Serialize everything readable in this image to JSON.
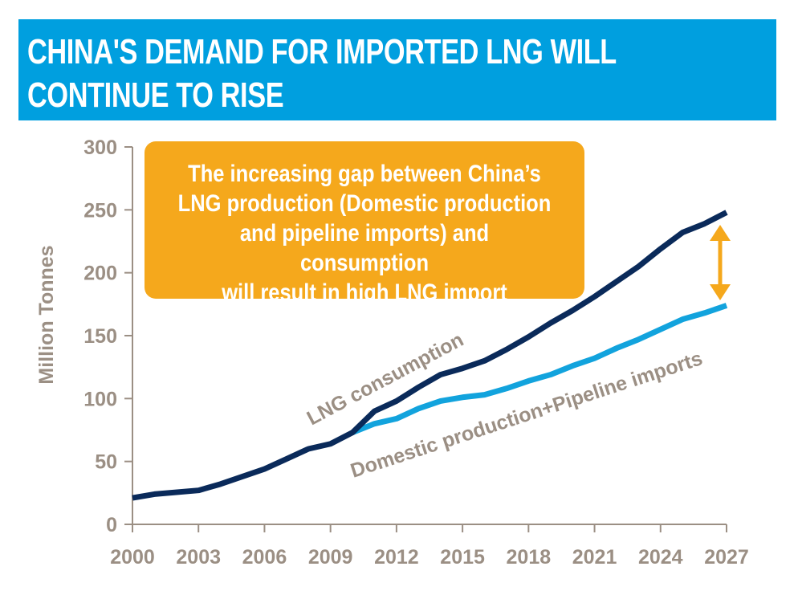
{
  "title": "CHINA'S DEMAND FOR IMPORTED LNG WILL CONTINUE TO RISE",
  "callout": {
    "lines": [
      "The increasing gap between China’s",
      "LNG production (Domestic production",
      "and pipeline imports) and consumption",
      "will result in high LNG import volumes"
    ]
  },
  "colors": {
    "banner": "#009fdf",
    "consumption": "#0a2a5a",
    "domestic": "#12a3dd",
    "callout": "#f5a81c",
    "axis_text": "#9b8f84"
  },
  "chart_data": {
    "type": "line",
    "title": "CHINA'S DEMAND FOR IMPORTED LNG WILL CONTINUE TO RISE",
    "xlabel": "",
    "ylabel": "Million Tonnes",
    "xlim": [
      2000,
      2027
    ],
    "ylim": [
      0,
      300
    ],
    "xticks": [
      "2000",
      "2003",
      "2006",
      "2009",
      "2012",
      "2015",
      "2018",
      "2021",
      "2024",
      "2027"
    ],
    "yticks": [
      "0",
      "50",
      "100",
      "150",
      "200",
      "250",
      "300"
    ],
    "series": [
      {
        "name": "LNG consumption",
        "x": [
          2000,
          2001,
          2003,
          2004,
          2005,
          2006,
          2007,
          2008,
          2009,
          2010,
          2011,
          2012,
          2013,
          2014,
          2015,
          2016,
          2017,
          2018,
          2019,
          2020,
          2021,
          2022,
          2023,
          2024,
          2025,
          2026,
          2027
        ],
        "values": [
          21,
          24,
          27,
          32,
          38,
          44,
          52,
          60,
          64,
          73,
          90,
          98,
          109,
          119,
          124,
          130,
          139,
          149,
          160,
          170,
          181,
          193,
          205,
          219,
          232,
          239,
          248
        ]
      },
      {
        "name": "Domestic production+Pipeline imports",
        "x": [
          2010,
          2011,
          2012,
          2013,
          2014,
          2015,
          2016,
          2017,
          2018,
          2019,
          2020,
          2021,
          2022,
          2023,
          2024,
          2025,
          2026,
          2027
        ],
        "values": [
          73,
          80,
          84,
          92,
          98,
          101,
          103,
          108,
          114,
          119,
          126,
          132,
          140,
          147,
          155,
          163,
          168,
          174
        ]
      }
    ]
  }
}
